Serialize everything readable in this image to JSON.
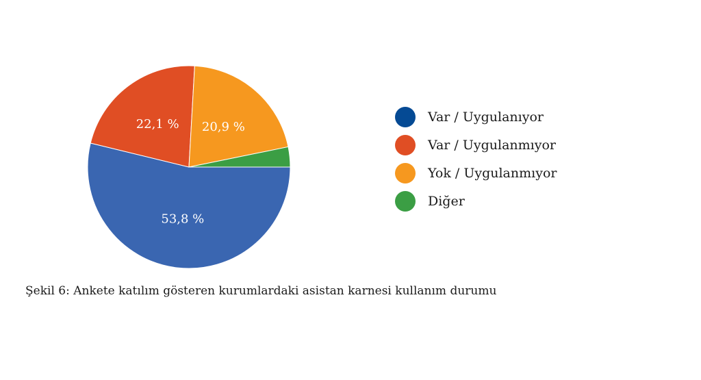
{
  "chart_data": {
    "type": "pie",
    "categories": [
      "Var / Uygulanıyor",
      "Var / Uygulanmıyor",
      "Yok / Uygulanmıyor",
      "Diğer"
    ],
    "values": [
      53.8,
      22.1,
      20.9,
      3.2
    ],
    "slice_labels": [
      "53,8 %",
      "22,1 %",
      "20,9 %",
      ""
    ],
    "colors": [
      "#3a66b1",
      "#e04e24",
      "#f6981f",
      "#3b9e44"
    ],
    "legend_colors": [
      "#054a94",
      "#e04e24",
      "#f6981f",
      "#3b9e44"
    ],
    "legend_placement": "right"
  },
  "caption": "Şekil 6: Ankete katılım gösteren kurumlardaki asistan karnesi kullanım durumu"
}
